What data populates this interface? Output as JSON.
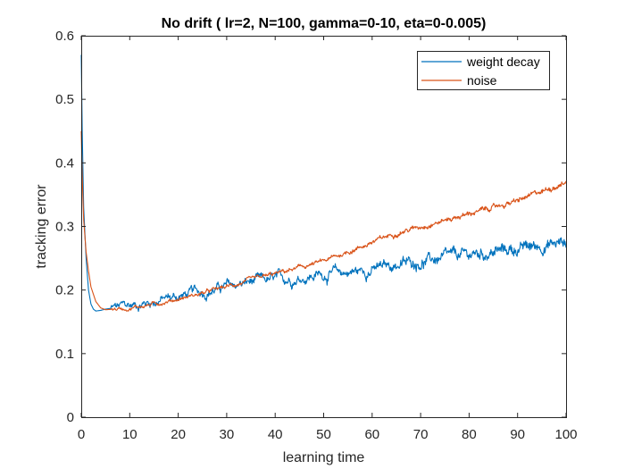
{
  "chart_data": {
    "type": "line",
    "title": "No drift ( lr=2, N=100, gamma=0-10, eta=0-0.005)",
    "xlabel": "learning time",
    "ylabel": "tracking error",
    "xlim": [
      0,
      100
    ],
    "ylim": [
      0,
      0.6
    ],
    "xticks": [
      0,
      10,
      20,
      30,
      40,
      50,
      60,
      70,
      80,
      90,
      100
    ],
    "yticks": [
      0,
      0.1,
      0.2,
      0.3,
      0.4,
      0.5,
      0.6
    ],
    "xtick_labels": [
      "0",
      "10",
      "20",
      "30",
      "40",
      "50",
      "60",
      "70",
      "80",
      "90",
      "100"
    ],
    "ytick_labels": [
      "0",
      "0.1",
      "0.2",
      "0.3",
      "0.4",
      "0.5",
      "0.6"
    ],
    "grid": false,
    "legend_position": "top-right",
    "series": [
      {
        "name": "weight decay",
        "color": "#0072BD",
        "x": [
          0,
          0.2,
          0.5,
          1,
          1.5,
          2,
          2.5,
          3,
          4,
          5,
          7,
          10,
          15,
          20,
          25,
          30,
          35,
          40,
          45,
          50,
          55,
          60,
          65,
          70,
          75,
          80,
          85,
          90,
          95,
          100
        ],
        "y": [
          0.57,
          0.45,
          0.33,
          0.25,
          0.2,
          0.178,
          0.17,
          0.167,
          0.168,
          0.17,
          0.172,
          0.175,
          0.183,
          0.19,
          0.198,
          0.205,
          0.212,
          0.215,
          0.22,
          0.225,
          0.228,
          0.232,
          0.24,
          0.245,
          0.25,
          0.255,
          0.26,
          0.265,
          0.27,
          0.275
        ]
      },
      {
        "name": "noise",
        "color": "#D95319",
        "x": [
          0,
          0.2,
          0.5,
          1,
          1.5,
          2,
          3,
          4,
          5,
          7,
          10,
          15,
          20,
          25,
          30,
          35,
          40,
          45,
          50,
          55,
          60,
          65,
          70,
          75,
          80,
          85,
          90,
          95,
          100
        ],
        "y": [
          0.45,
          0.38,
          0.31,
          0.26,
          0.23,
          0.205,
          0.182,
          0.172,
          0.169,
          0.17,
          0.172,
          0.178,
          0.186,
          0.195,
          0.205,
          0.215,
          0.225,
          0.235,
          0.245,
          0.26,
          0.275,
          0.29,
          0.3,
          0.31,
          0.32,
          0.33,
          0.34,
          0.355,
          0.37
        ]
      }
    ]
  }
}
